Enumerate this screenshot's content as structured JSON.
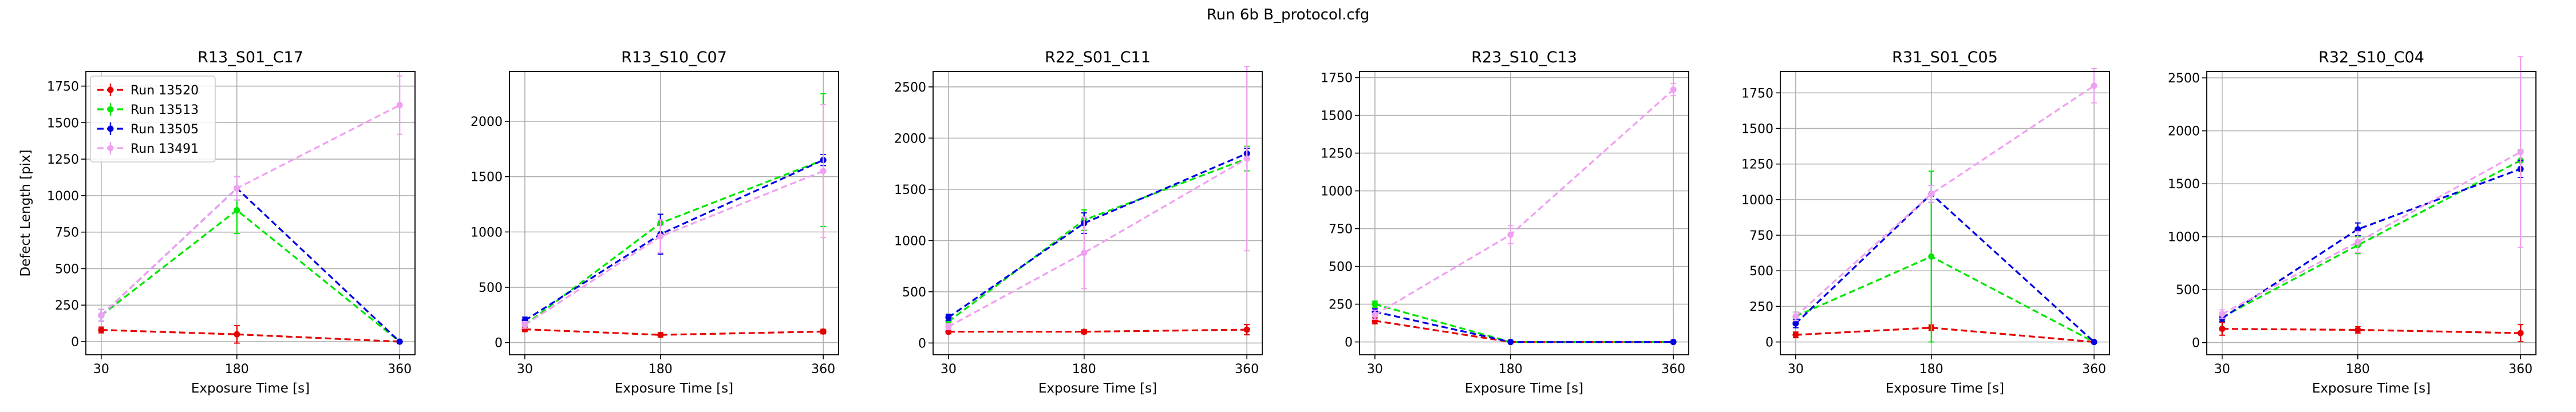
{
  "suptitle": "Run 6b B_protocol.cfg",
  "series_styles": [
    {
      "name": "Run 13520",
      "color": "#e60000"
    },
    {
      "name": "Run 13513",
      "color": "#00e600"
    },
    {
      "name": "Run 13505",
      "color": "#0000e6"
    },
    {
      "name": "Run 13491",
      "color": "#f0a0f0"
    }
  ],
  "chart_data": [
    {
      "type": "line",
      "title": "R13_S01_C17",
      "xlabel": "Exposure Time [s]",
      "ylabel": "Defect Length [pix]",
      "x": [
        30,
        180,
        360
      ],
      "xlim": [
        13,
        377
      ],
      "ylim": [
        -90,
        1850
      ],
      "yticks": [
        0,
        250,
        500,
        750,
        1000,
        1250,
        1500,
        1750
      ],
      "grid": true,
      "legend": "upper-left",
      "series": [
        {
          "name": "Run 13520",
          "values": [
            80,
            50,
            0
          ],
          "err": [
            20,
            60,
            5
          ]
        },
        {
          "name": "Run 13513",
          "values": [
            180,
            900,
            0
          ],
          "err": [
            40,
            160,
            5
          ]
        },
        {
          "name": "Run 13505",
          "values": [
            180,
            1050,
            0
          ],
          "err": [
            40,
            80,
            5
          ]
        },
        {
          "name": "Run 13491",
          "values": [
            180,
            1050,
            1620
          ],
          "err": [
            40,
            80,
            200
          ]
        }
      ]
    },
    {
      "type": "line",
      "title": "R13_S10_C07",
      "xlabel": "Exposure Time [s]",
      "ylabel": "",
      "x": [
        30,
        180,
        360
      ],
      "xlim": [
        13,
        377
      ],
      "ylim": [
        -110,
        2450
      ],
      "yticks": [
        0,
        500,
        1000,
        1500,
        2000
      ],
      "grid": true,
      "series": [
        {
          "name": "Run 13520",
          "values": [
            120,
            70,
            100
          ],
          "err": [
            20,
            20,
            20
          ]
        },
        {
          "name": "Run 13513",
          "values": [
            160,
            1080,
            1650
          ],
          "err": [
            30,
            80,
            600
          ]
        },
        {
          "name": "Run 13505",
          "values": [
            200,
            980,
            1650
          ],
          "err": [
            30,
            180,
            50
          ]
        },
        {
          "name": "Run 13491",
          "values": [
            160,
            960,
            1550
          ],
          "err": [
            30,
            150,
            600
          ]
        }
      ]
    },
    {
      "type": "line",
      "title": "R22_S01_C11",
      "xlabel": "Exposure Time [s]",
      "ylabel": "",
      "x": [
        30,
        180,
        360
      ],
      "xlim": [
        13,
        377
      ],
      "ylim": [
        -115,
        2650
      ],
      "yticks": [
        0,
        500,
        1000,
        1500,
        2000,
        2500
      ],
      "grid": true,
      "series": [
        {
          "name": "Run 13520",
          "values": [
            110,
            110,
            130
          ],
          "err": [
            20,
            20,
            50
          ]
        },
        {
          "name": "Run 13513",
          "values": [
            210,
            1200,
            1800
          ],
          "err": [
            30,
            100,
            120
          ]
        },
        {
          "name": "Run 13505",
          "values": [
            250,
            1170,
            1850
          ],
          "err": [
            30,
            100,
            50
          ]
        },
        {
          "name": "Run 13491",
          "values": [
            160,
            880,
            1800
          ],
          "err": [
            30,
            350,
            900
          ]
        }
      ]
    },
    {
      "type": "line",
      "title": "R23_S10_C13",
      "xlabel": "Exposure Time [s]",
      "ylabel": "",
      "x": [
        30,
        180,
        360
      ],
      "xlim": [
        13,
        377
      ],
      "ylim": [
        -85,
        1790
      ],
      "yticks": [
        0,
        250,
        500,
        750,
        1000,
        1250,
        1500,
        1750
      ],
      "grid": true,
      "series": [
        {
          "name": "Run 13520",
          "values": [
            140,
            0,
            0
          ],
          "err": [
            20,
            5,
            5
          ]
        },
        {
          "name": "Run 13513",
          "values": [
            250,
            0,
            0
          ],
          "err": [
            20,
            5,
            5
          ]
        },
        {
          "name": "Run 13505",
          "values": [
            200,
            0,
            0
          ],
          "err": [
            20,
            5,
            5
          ]
        },
        {
          "name": "Run 13491",
          "values": [
            180,
            710,
            1670
          ],
          "err": [
            30,
            60,
            40
          ]
        }
      ]
    },
    {
      "type": "line",
      "title": "R31_S01_C05",
      "xlabel": "Exposure Time [s]",
      "ylabel": "",
      "x": [
        30,
        180,
        360
      ],
      "xlim": [
        13,
        377
      ],
      "ylim": [
        -90,
        1900
      ],
      "yticks": [
        0,
        250,
        500,
        750,
        1000,
        1250,
        1500,
        1750
      ],
      "grid": true,
      "series": [
        {
          "name": "Run 13520",
          "values": [
            50,
            100,
            0
          ],
          "err": [
            20,
            20,
            5
          ]
        },
        {
          "name": "Run 13513",
          "values": [
            180,
            600,
            0
          ],
          "err": [
            30,
            600,
            5
          ]
        },
        {
          "name": "Run 13505",
          "values": [
            130,
            1040,
            0
          ],
          "err": [
            30,
            60,
            5
          ]
        },
        {
          "name": "Run 13491",
          "values": [
            180,
            1040,
            1800
          ],
          "err": [
            30,
            60,
            120
          ]
        }
      ]
    },
    {
      "type": "line",
      "title": "R32_S10_C04",
      "xlabel": "Exposure Time [s]",
      "ylabel": "",
      "x": [
        30,
        180,
        360
      ],
      "xlim": [
        13,
        377
      ],
      "ylim": [
        -115,
        2560
      ],
      "yticks": [
        0,
        500,
        1000,
        1500,
        2000,
        2500
      ],
      "grid": true,
      "series": [
        {
          "name": "Run 13520",
          "values": [
            130,
            120,
            90
          ],
          "err": [
            60,
            30,
            80
          ]
        },
        {
          "name": "Run 13513",
          "values": [
            240,
            920,
            1720
          ],
          "err": [
            30,
            80,
            100
          ]
        },
        {
          "name": "Run 13505",
          "values": [
            230,
            1070,
            1640
          ],
          "err": [
            30,
            60,
            80
          ]
        },
        {
          "name": "Run 13491",
          "values": [
            270,
            950,
            1800
          ],
          "err": [
            40,
            100,
            900
          ]
        }
      ]
    }
  ]
}
